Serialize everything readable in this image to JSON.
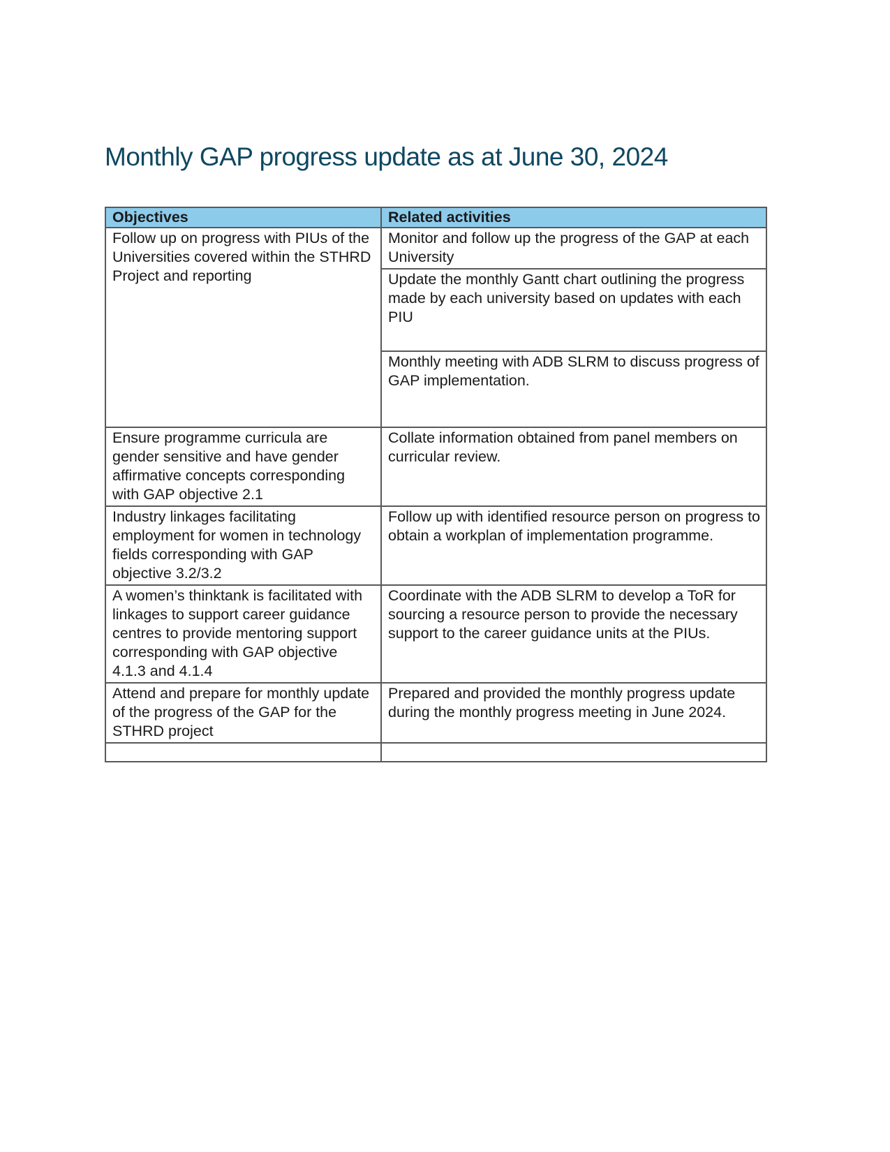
{
  "document": {
    "title": "Monthly GAP progress update as at June 30, 2024"
  },
  "colors": {
    "title_text": "#0F4761",
    "header_fill": "#8DCBEB",
    "table_border": "#595959",
    "body_text": "#1A1A1A",
    "page_background": "#FFFFFF"
  },
  "table": {
    "headers": [
      "Objectives",
      "Related activities"
    ],
    "rows": [
      {
        "objective": "Follow up on progress with PIUs of the Universities covered within the STHRD Project and reporting",
        "activities": [
          "Monitor and follow up the progress of the GAP at each University",
          "Update the monthly Gantt chart outlining the progress made by each university based on updates with each PIU",
          "Monthly meeting with ADB SLRM to discuss progress of GAP implementation."
        ]
      },
      {
        "objective": "Ensure programme curricula are gender sensitive and have gender affirmative concepts corresponding with GAP objective 2.1",
        "activities": [
          "Collate information obtained from panel members on curricular review."
        ]
      },
      {
        "objective": "Industry linkages facilitating employment for women in technology fields corresponding with GAP objective 3.2/3.2",
        "activities": [
          "Follow up with identified resource person on progress to obtain a workplan of implementation programme."
        ]
      },
      {
        "objective": "A women’s thinktank is facilitated with linkages to support career guidance centres to provide mentoring support corresponding with GAP objective 4.1.3 and 4.1.4",
        "activities": [
          "Coordinate with the ADB SLRM to develop a ToR for sourcing a resource person to provide the necessary support to the career guidance units at the PIUs."
        ]
      },
      {
        "objective": "Attend and prepare for monthly update of the progress of the GAP for the STHRD project",
        "activities": [
          "Prepared and provided the monthly progress update during the monthly progress meeting in June 2024."
        ]
      },
      {
        "objective": "",
        "activities": [
          ""
        ]
      }
    ]
  }
}
